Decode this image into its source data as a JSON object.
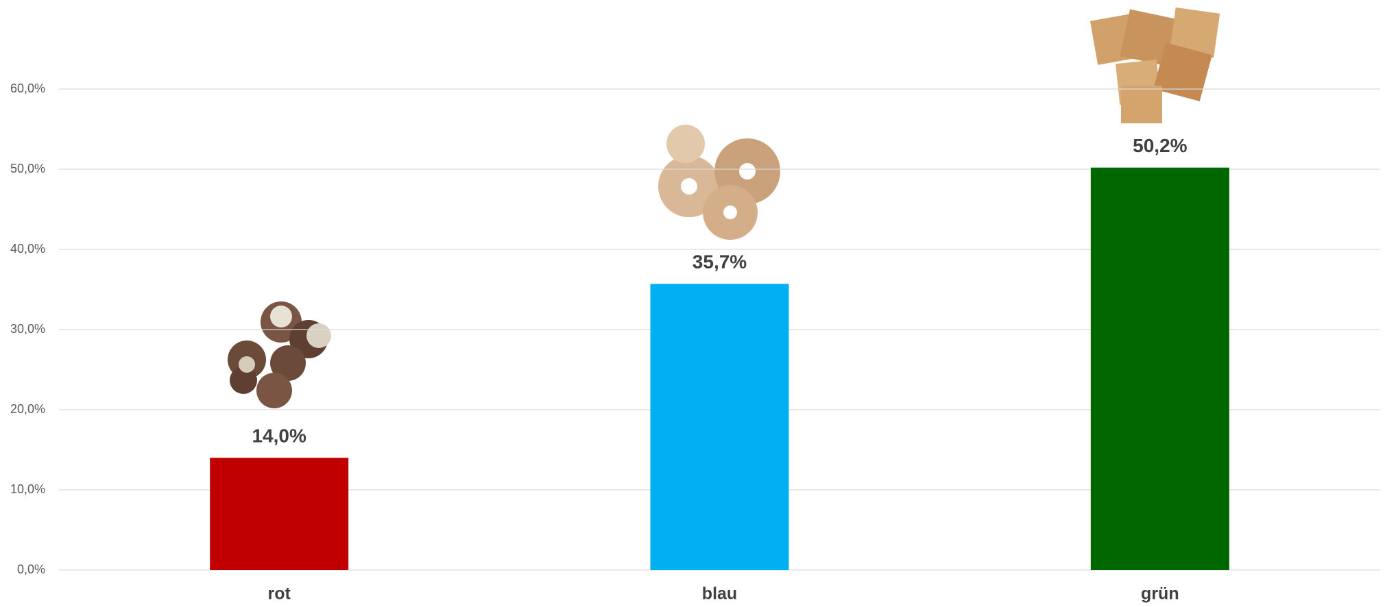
{
  "chart_data": {
    "type": "bar",
    "categories": [
      "rot",
      "blau",
      "grün"
    ],
    "values": [
      14.0,
      35.7,
      50.2
    ],
    "value_labels": [
      "14,0%",
      "35,7%",
      "50,2%"
    ],
    "colors": [
      "#c00000",
      "#00b0f0",
      "#006600"
    ],
    "ylim": [
      0,
      70
    ],
    "yticks": [
      {
        "value": 0,
        "label": "0,0%"
      },
      {
        "value": 10,
        "label": "10,0%"
      },
      {
        "value": 20,
        "label": "20,0%"
      },
      {
        "value": 30,
        "label": "30,0%"
      },
      {
        "value": 40,
        "label": "40,0%"
      },
      {
        "value": 50,
        "label": "50,0%"
      },
      {
        "value": 60,
        "label": "60,0%"
      }
    ],
    "grid": true
  }
}
